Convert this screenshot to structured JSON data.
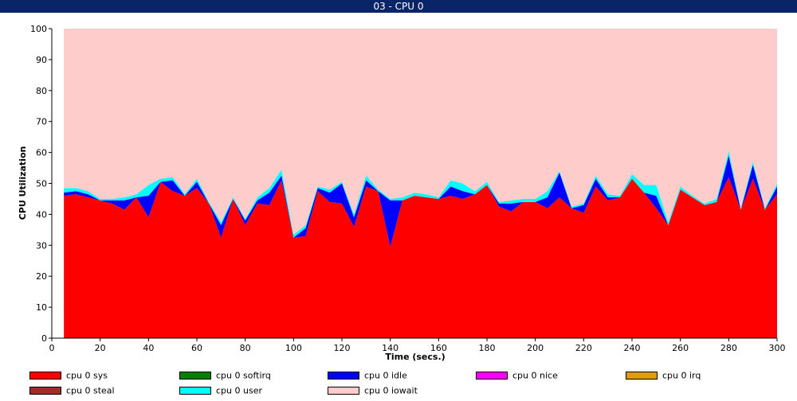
{
  "window": {
    "title": "03 - CPU 0"
  },
  "chart_data": {
    "type": "area",
    "stacked": true,
    "title": "03 - CPU 0",
    "xlabel": "Time (secs.)",
    "ylabel": "CPU Utilization",
    "xlim": [
      0,
      300
    ],
    "ylim": [
      0,
      100
    ],
    "xticks": [
      0,
      20,
      40,
      60,
      80,
      100,
      120,
      140,
      160,
      180,
      200,
      220,
      240,
      260,
      280,
      300
    ],
    "yticks": [
      0,
      10,
      20,
      30,
      40,
      50,
      60,
      70,
      80,
      90,
      100
    ],
    "x": [
      5,
      10,
      15,
      20,
      25,
      30,
      35,
      40,
      45,
      50,
      55,
      60,
      65,
      70,
      75,
      80,
      85,
      90,
      95,
      100,
      105,
      110,
      115,
      120,
      125,
      130,
      135,
      140,
      145,
      150,
      155,
      160,
      165,
      170,
      175,
      180,
      185,
      190,
      195,
      200,
      205,
      210,
      215,
      220,
      225,
      230,
      235,
      240,
      245,
      250,
      255,
      260,
      265,
      270,
      275,
      280,
      285,
      290,
      295,
      300
    ],
    "series": [
      {
        "name": "cpu 0 sys",
        "color": "#ff0000",
        "values": [
          46,
          46.5,
          45.5,
          44.5,
          43.5,
          41.5,
          45.5,
          39,
          50.5,
          47.5,
          46,
          48.5,
          43.5,
          32.5,
          45,
          36.5,
          43.5,
          43,
          51,
          32.5,
          33,
          47.5,
          44,
          43.5,
          36,
          49,
          47.5,
          29.5,
          44.5,
          46,
          45.5,
          45,
          46,
          45,
          46.5,
          49.5,
          42.5,
          41,
          44,
          44,
          42,
          45.5,
          42,
          40.5,
          49,
          44.5,
          45.5,
          51.5,
          47,
          42,
          36.5,
          48,
          45.5,
          43,
          44,
          52,
          41.5,
          51.5,
          41.5,
          46.5
        ]
      },
      {
        "name": "cpu 0 softirq",
        "color": "#008000",
        "values": [
          0,
          0,
          0,
          0,
          0,
          0,
          0,
          0,
          0,
          0,
          0,
          0,
          0,
          0,
          0,
          0,
          0,
          0,
          0,
          0,
          0,
          0,
          0,
          0,
          0,
          0,
          0,
          0,
          0,
          0,
          0,
          0,
          0,
          0,
          0,
          0,
          0,
          0,
          0,
          0,
          0,
          0,
          0,
          0,
          0,
          0,
          0,
          0,
          0,
          0,
          0,
          0,
          0,
          0,
          0,
          0,
          0,
          0,
          0,
          0
        ]
      },
      {
        "name": "cpu 0 idle",
        "color": "#0000ff",
        "values": [
          1,
          1,
          1,
          0,
          1,
          3,
          0,
          7,
          0,
          3.5,
          0,
          2,
          0,
          4,
          0,
          1.5,
          1,
          4,
          1.5,
          0,
          2.5,
          1,
          3,
          6.5,
          3,
          2,
          0,
          15,
          0,
          0,
          0,
          0,
          3,
          2.5,
          0,
          0,
          1,
          2.5,
          0,
          0,
          3.5,
          8,
          0,
          2.5,
          2.5,
          1,
          0,
          0,
          0,
          4,
          0,
          0,
          0,
          0,
          0,
          7,
          0,
          4.5,
          0,
          2.5
        ]
      },
      {
        "name": "cpu 0 nice",
        "color": "#ff00ff",
        "values": [
          0,
          0,
          0,
          0,
          0,
          0,
          0,
          0,
          0,
          0,
          0,
          0,
          0,
          0,
          0,
          0,
          0,
          0,
          0,
          0,
          0,
          0,
          0,
          0,
          0,
          0,
          0,
          0,
          0,
          0,
          0,
          0,
          0,
          0,
          0,
          0,
          0,
          0,
          0,
          0,
          0,
          0,
          0,
          0,
          0,
          0,
          0,
          0,
          0,
          0,
          0,
          0,
          0,
          0,
          0,
          0,
          0,
          0,
          0,
          0
        ]
      },
      {
        "name": "cpu 0 irq",
        "color": "#e09c00",
        "values": [
          0,
          0,
          0,
          0,
          0,
          0,
          0,
          0,
          0,
          0,
          0,
          0,
          0,
          0,
          0,
          0,
          0,
          0,
          0,
          0,
          0,
          0,
          0,
          0,
          0,
          0,
          0,
          0,
          0,
          0,
          0,
          0,
          0,
          0,
          0,
          0,
          0,
          0,
          0,
          0,
          0,
          0,
          0,
          0,
          0,
          0,
          0,
          0,
          0,
          0,
          0,
          0,
          0,
          0,
          0,
          0,
          0,
          0,
          0,
          0
        ]
      },
      {
        "name": "cpu 0 steal",
        "color": "#a52a2a",
        "values": [
          0,
          0,
          0,
          0,
          0,
          0,
          0,
          0,
          0,
          0,
          0,
          0,
          0,
          0,
          0,
          0,
          0,
          0,
          0,
          0,
          0,
          0,
          0,
          0,
          0,
          0,
          0,
          0,
          0,
          0,
          0,
          0,
          0,
          0,
          0,
          0,
          0,
          0,
          0,
          0,
          0,
          0,
          0,
          0,
          0,
          0,
          0,
          0,
          0,
          0,
          0,
          0,
          0,
          0,
          0,
          0,
          0,
          0,
          0,
          0
        ]
      },
      {
        "name": "cpu 0 user",
        "color": "#00ffff",
        "values": [
          1.5,
          1,
          1,
          0.5,
          0.5,
          1,
          1,
          3.5,
          1,
          1,
          0.5,
          1,
          0.5,
          1,
          0.5,
          0.5,
          1,
          1.5,
          2,
          1,
          1,
          0.5,
          1,
          0.5,
          1,
          1.5,
          0.5,
          0.5,
          1,
          1,
          1,
          0.5,
          2,
          2.5,
          1,
          1,
          0.5,
          1,
          1,
          1,
          2,
          0.5,
          0.5,
          0.5,
          1,
          1,
          0.5,
          1.5,
          2.5,
          3.5,
          1,
          1,
          0.5,
          0.5,
          1,
          1.5,
          0.5,
          1,
          0.5,
          1
        ]
      },
      {
        "name": "cpu 0 iowait",
        "color": "#ffcccc",
        "values": [
          51.5,
          51.5,
          52.5,
          55,
          55,
          54.5,
          53.5,
          50.5,
          48.5,
          48,
          53.5,
          48.5,
          56,
          62.5,
          54.5,
          61.5,
          54.5,
          51.5,
          45.5,
          66.5,
          63.5,
          51,
          52,
          49.5,
          60,
          47.5,
          52,
          55,
          54.5,
          53,
          53.5,
          54.5,
          49,
          50,
          52.5,
          49.5,
          56,
          55.5,
          55,
          55,
          52.5,
          46,
          57.5,
          56.5,
          47.5,
          53.5,
          54,
          47,
          50.5,
          50.5,
          62.5,
          51,
          54,
          56.5,
          55,
          39.5,
          58,
          43,
          58,
          50
        ]
      }
    ],
    "legend_position": "bottom",
    "grid": false
  }
}
